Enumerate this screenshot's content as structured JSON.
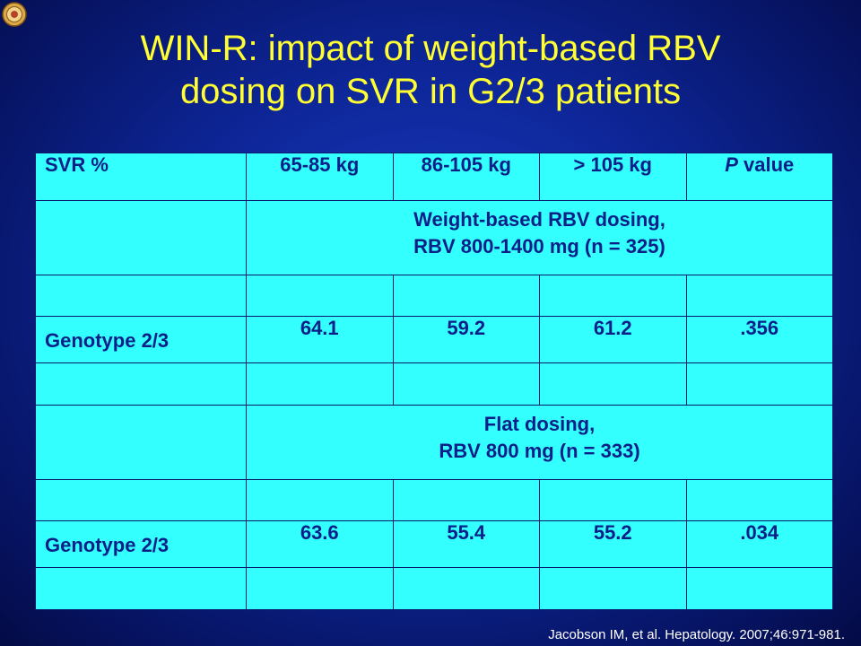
{
  "slide": {
    "title_line1": "WIN-R: impact of weight-based RBV",
    "title_line2": "dosing on SVR in G2/3 patients",
    "citation": "Jacobson IM, et al. Hepatology. 2007;46:971-981."
  },
  "table": {
    "headers": {
      "col0": "SVR %",
      "col1": "65-85 kg",
      "col2": "86-105 kg",
      "col3": "> 105 kg",
      "col4_italic": "P",
      "col4_rest": " value"
    },
    "section1": {
      "line1": "Weight-based RBV dosing,",
      "line2": "RBV 800-1400 mg (n = 325)"
    },
    "row1": {
      "label": "Genotype 2/3",
      "v1": "64.1",
      "v2": "59.2",
      "v3": "61.2",
      "p": ".356"
    },
    "section2": {
      "line1": "Flat dosing,",
      "line2": "RBV 800 mg (n = 333)"
    },
    "row2": {
      "label": "Genotype 2/3",
      "v1": "63.6",
      "v2": "55.4",
      "v3": "55.2",
      "p": ".034"
    }
  },
  "colors": {
    "background": "#0d2596",
    "title": "#ffff33",
    "table_fill": "#33ffff",
    "table_text": "#0b1f88"
  }
}
